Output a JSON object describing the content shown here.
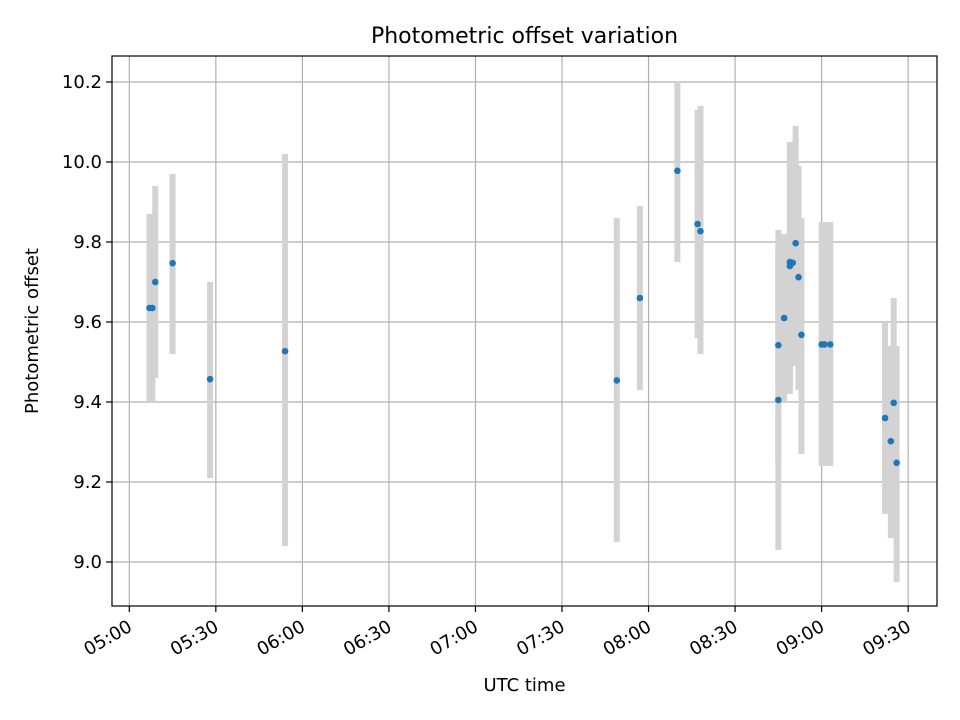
{
  "chart_data": {
    "type": "scatter",
    "title": "Photometric offset variation",
    "xlabel": "UTC time",
    "ylabel": "Photometric offset",
    "xlim": [
      "04:54",
      "09:40"
    ],
    "ylim": [
      8.89,
      10.265
    ],
    "x_ticks": [
      "05:00",
      "05:30",
      "06:00",
      "06:30",
      "07:00",
      "07:30",
      "08:00",
      "08:30",
      "09:00",
      "09:30"
    ],
    "y_ticks": [
      "9.0",
      "9.2",
      "9.4",
      "9.6",
      "9.8",
      "10.0",
      "10.2"
    ],
    "grid": true,
    "colors": {
      "marker": "#1f77b4",
      "error_bar": "#d3d3d3"
    },
    "series": [
      {
        "points": [
          {
            "x": "05:07",
            "y": 9.635,
            "ylow": 9.4,
            "yhigh": 9.87
          },
          {
            "x": "05:08",
            "y": 9.635,
            "ylow": 9.4,
            "yhigh": 9.86
          },
          {
            "x": "05:09",
            "y": 9.7,
            "ylow": 9.46,
            "yhigh": 9.94
          },
          {
            "x": "05:15",
            "y": 9.747,
            "ylow": 9.52,
            "yhigh": 9.97
          },
          {
            "x": "05:28",
            "y": 9.457,
            "ylow": 9.21,
            "yhigh": 9.7
          },
          {
            "x": "05:54",
            "y": 9.527,
            "ylow": 9.04,
            "yhigh": 10.02
          },
          {
            "x": "07:49",
            "y": 9.454,
            "ylow": 9.05,
            "yhigh": 9.86
          },
          {
            "x": "07:57",
            "y": 9.66,
            "ylow": 9.43,
            "yhigh": 9.89
          },
          {
            "x": "08:10",
            "y": 9.978,
            "ylow": 9.75,
            "yhigh": 10.2
          },
          {
            "x": "08:17",
            "y": 9.845,
            "ylow": 9.56,
            "yhigh": 10.13
          },
          {
            "x": "08:18",
            "y": 9.827,
            "ylow": 9.52,
            "yhigh": 10.14
          },
          {
            "x": "08:45",
            "y": 9.405,
            "ylow": 9.03,
            "yhigh": 9.78
          },
          {
            "x": "08:45",
            "y": 9.542,
            "ylow": 9.25,
            "yhigh": 9.83
          },
          {
            "x": "08:47",
            "y": 9.61,
            "ylow": 9.4,
            "yhigh": 9.82
          },
          {
            "x": "08:49",
            "y": 9.75,
            "ylow": 9.45,
            "yhigh": 10.04
          },
          {
            "x": "08:49",
            "y": 9.74,
            "ylow": 9.42,
            "yhigh": 10.05
          },
          {
            "x": "08:50",
            "y": 9.748,
            "ylow": 9.49,
            "yhigh": 10.0
          },
          {
            "x": "08:51",
            "y": 9.797,
            "ylow": 9.5,
            "yhigh": 10.09
          },
          {
            "x": "08:52",
            "y": 9.712,
            "ylow": 9.43,
            "yhigh": 9.99
          },
          {
            "x": "08:53",
            "y": 9.568,
            "ylow": 9.27,
            "yhigh": 9.86
          },
          {
            "x": "09:00",
            "y": 9.544,
            "ylow": 9.24,
            "yhigh": 9.85
          },
          {
            "x": "09:01",
            "y": 9.544,
            "ylow": 9.24,
            "yhigh": 9.85
          },
          {
            "x": "09:03",
            "y": 9.544,
            "ylow": 9.24,
            "yhigh": 9.85
          },
          {
            "x": "09:22",
            "y": 9.36,
            "ylow": 9.12,
            "yhigh": 9.6
          },
          {
            "x": "09:24",
            "y": 9.302,
            "ylow": 9.06,
            "yhigh": 9.54
          },
          {
            "x": "09:25",
            "y": 9.398,
            "ylow": 9.14,
            "yhigh": 9.66
          },
          {
            "x": "09:26",
            "y": 9.248,
            "ylow": 8.95,
            "yhigh": 9.54
          }
        ]
      }
    ]
  }
}
